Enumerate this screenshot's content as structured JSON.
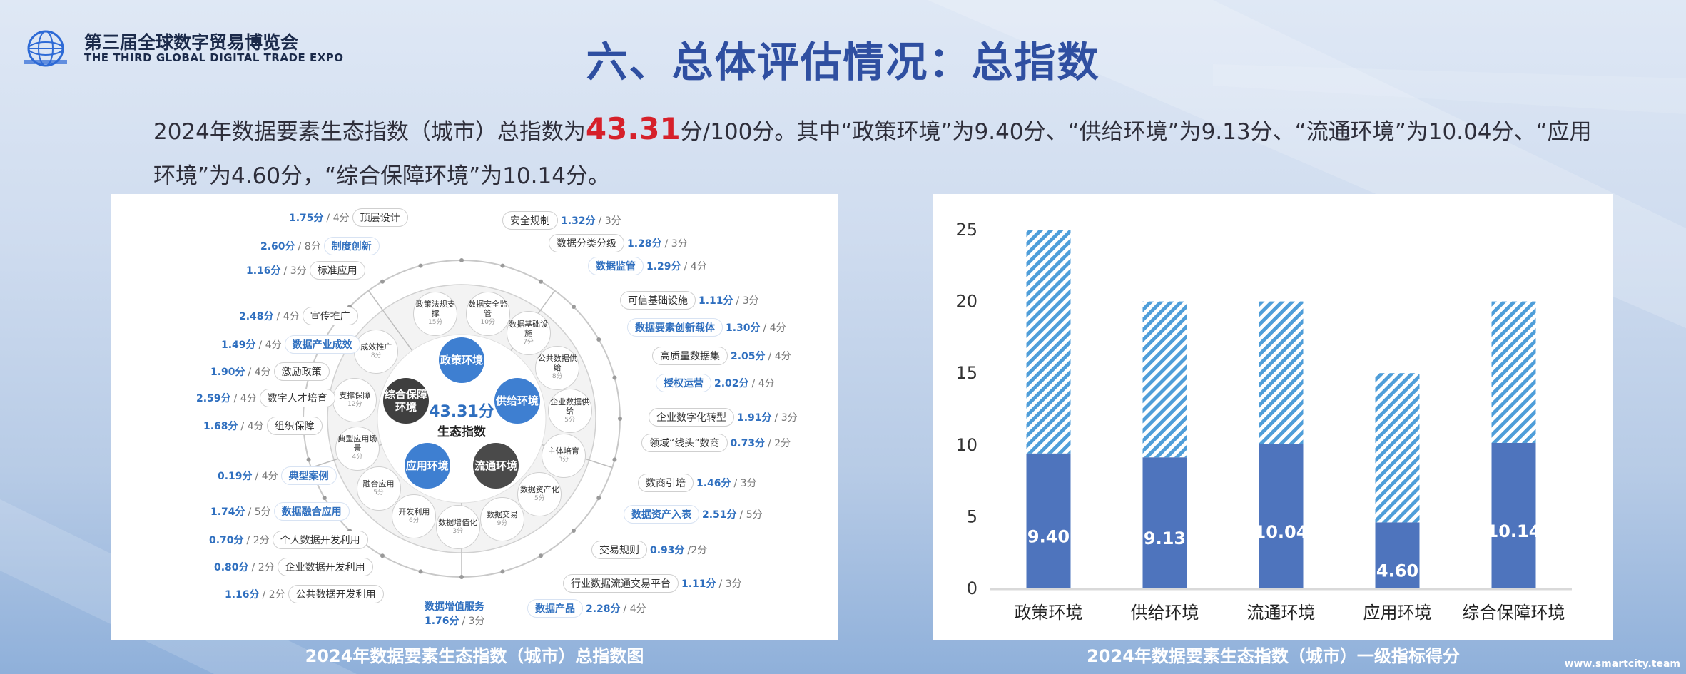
{
  "header": {
    "logo_cn": "第三届全球数字贸易博览会",
    "logo_en": "THE THIRD GLOBAL DIGITAL TRADE EXPO",
    "title": "六、总体评估情况：总指数"
  },
  "intro": {
    "part1": "2024年数据要素生态指数（城市）总指数为",
    "score": "43.31",
    "part2": "分/100分。其中“政策环境”为9.40分、“供给环境”为9.13分、“流通环境”为10.04分、“应用环境”为4.60分，“综合保障环境”为10.14分。"
  },
  "diagram": {
    "caption": "2024年数据要素生态指数（城市）总指数图",
    "center_score": "43.31分",
    "center_label": "生态指数",
    "cores": [
      "政策环境",
      "供给环境",
      "流通环境",
      "应用环境",
      "综合保障环境"
    ],
    "ring": [
      {
        "name": "政策法规支撑",
        "max": "15分"
      },
      {
        "name": "数据安全监管",
        "max": "10分"
      },
      {
        "name": "数据基础设施",
        "max": "7分"
      },
      {
        "name": "公共数据供给",
        "max": "8分"
      },
      {
        "name": "企业数据供给",
        "max": "5分"
      },
      {
        "name": "主体培育",
        "max": "3分"
      },
      {
        "name": "数据资产化",
        "max": "5分"
      },
      {
        "name": "数据交易",
        "max": "9分"
      },
      {
        "name": "数据增值化",
        "max": "3分"
      },
      {
        "name": "开发利用",
        "max": "6分"
      },
      {
        "name": "融合应用",
        "max": "5分"
      },
      {
        "name": "典型应用场景",
        "max": "4分"
      },
      {
        "name": "支撑保障",
        "max": "12分"
      },
      {
        "name": "成效推广",
        "max": "8分"
      }
    ],
    "left_items": [
      {
        "score": "1.75分",
        "max": "/ 4分",
        "name": "顶层设计",
        "hl": false
      },
      {
        "score": "2.60分",
        "max": "/ 8分",
        "name": "制度创新",
        "hl": true
      },
      {
        "score": "1.16分",
        "max": "/ 3分",
        "name": "标准应用",
        "hl": false
      },
      {
        "score": "2.48分",
        "max": "/ 4分",
        "name": "宣传推广",
        "hl": false
      },
      {
        "score": "1.49分",
        "max": "/ 4分",
        "name": "数据产业成效",
        "hl": true
      },
      {
        "score": "1.90分",
        "max": "/ 4分",
        "name": "激励政策",
        "hl": false
      },
      {
        "score": "2.59分",
        "max": "/ 4分",
        "name": "数字人才培育",
        "hl": false
      },
      {
        "score": "1.68分",
        "max": "/ 4分",
        "name": "组织保障",
        "hl": false
      },
      {
        "score": "0.19分",
        "max": "/ 4分",
        "name": "典型案例",
        "hl": true
      },
      {
        "score": "1.74分",
        "max": "/ 5分",
        "name": "数据融合应用",
        "hl": true
      },
      {
        "score": "0.70分",
        "max": "/ 2分",
        "name": "个人数据开发利用",
        "hl": false
      },
      {
        "score": "0.80分",
        "max": "/ 2分",
        "name": "企业数据开发利用",
        "hl": false
      },
      {
        "score": "1.16分",
        "max": "/ 2分",
        "name": "公共数据开发利用",
        "hl": false
      }
    ],
    "right_items": [
      {
        "name": "安全规制",
        "score": "1.32分",
        "max": "/ 3分",
        "hl": false
      },
      {
        "name": "数据分类分级",
        "score": "1.28分",
        "max": "/ 3分",
        "hl": false
      },
      {
        "name": "数据监管",
        "score": "1.29分",
        "max": "/ 4分",
        "hl": true
      },
      {
        "name": "可信基础设施",
        "score": "1.11分",
        "max": "/ 3分",
        "hl": false
      },
      {
        "name": "数据要素创新载体",
        "score": "1.30分",
        "max": "/ 4分",
        "hl": true
      },
      {
        "name": "高质量数据集",
        "score": "2.05分",
        "max": "/ 4分",
        "hl": false
      },
      {
        "name": "授权运营",
        "score": "2.02分",
        "max": "/ 4分",
        "hl": true
      },
      {
        "name": "企业数字化转型",
        "score": "1.91分",
        "max": "/ 3分",
        "hl": false
      },
      {
        "name": "领域“线头”数商",
        "score": "0.73分",
        "max": "/ 2分",
        "hl": false
      },
      {
        "name": "数商引培",
        "score": "1.46分",
        "max": "/ 3分",
        "hl": false
      },
      {
        "name": "数据资产入表",
        "score": "2.51分",
        "max": "/ 5分",
        "hl": true
      },
      {
        "name": "交易规则",
        "score": "0.93分",
        "max": "/2分",
        "hl": false
      },
      {
        "name": "行业数据流通交易平台",
        "score": "1.11分",
        "max": "/ 3分",
        "hl": false
      }
    ],
    "bottom_items": [
      {
        "name": "数据增值服务",
        "score": "1.76分",
        "max": "/ 3分"
      },
      {
        "name": "数据产品",
        "score": "2.28分",
        "max": "/ 4分"
      }
    ]
  },
  "chart_caption": "2024年数据要素生态指数（城市）一级指标得分",
  "chart_data": {
    "type": "bar",
    "categories": [
      "政策环境",
      "供给环境",
      "流通环境",
      "应用环境",
      "综合保障环境"
    ],
    "values": [
      9.4,
      9.13,
      10.04,
      4.6,
      10.14
    ],
    "value_labels": [
      "9.40",
      "9.13",
      "10.04",
      "4.60",
      "10.14"
    ],
    "max_scores": [
      25,
      20,
      20,
      15,
      20
    ],
    "ylim": [
      0,
      25
    ],
    "yticks": [
      "0",
      "5",
      "10",
      "15",
      "20",
      "25"
    ],
    "colors": {
      "score": "#4e74bd",
      "remaining": "#4f9ed9"
    }
  },
  "watermark": "www.smartcity.team"
}
